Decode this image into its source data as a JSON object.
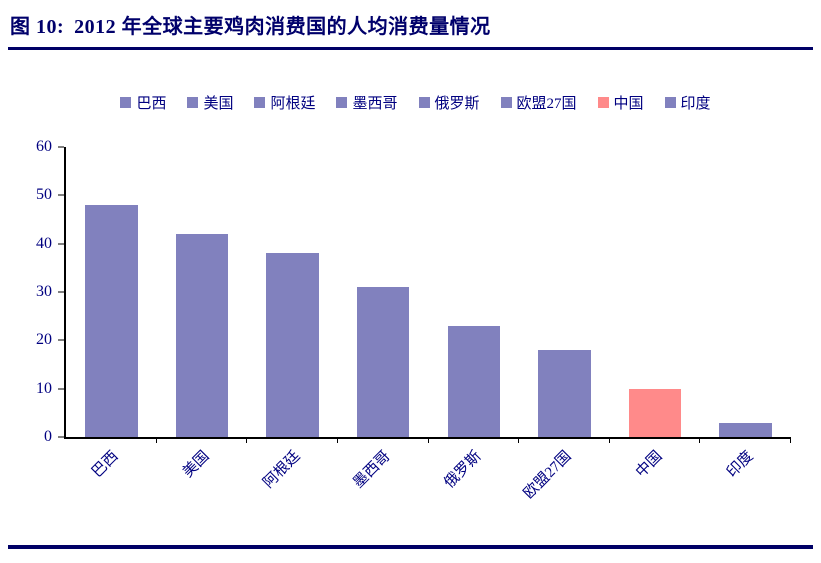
{
  "figure": {
    "label": "图 10:",
    "title": "2012 年全球主要鸡肉消费国的人均消费量情况"
  },
  "colors": {
    "bar_default": "#8181be",
    "bar_highlight": "#ff8a8a",
    "axis_text": "#000080",
    "title_text": "#00006b",
    "rule": "#000066",
    "axis_line": "#000000"
  },
  "chart_data": {
    "type": "bar",
    "title": "2012 年全球主要鸡肉消费国的人均消费量情况",
    "categories": [
      "巴西",
      "美国",
      "阿根廷",
      "墨西哥",
      "俄罗斯",
      "欧盟27国",
      "中国",
      "印度"
    ],
    "values": [
      48,
      42,
      38,
      31,
      23,
      18,
      10,
      3
    ],
    "bar_colors": [
      "#8181be",
      "#8181be",
      "#8181be",
      "#8181be",
      "#8181be",
      "#8181be",
      "#ff8a8a",
      "#8181be"
    ],
    "xlabel": "",
    "ylabel": "",
    "ylim": [
      0,
      60
    ],
    "yticks": [
      0,
      10,
      20,
      30,
      40,
      50,
      60
    ],
    "grid": false,
    "legend_position": "top",
    "legend": [
      {
        "label": "巴西",
        "color": "#8181be"
      },
      {
        "label": "美国",
        "color": "#8181be"
      },
      {
        "label": "阿根廷",
        "color": "#8181be"
      },
      {
        "label": "墨西哥",
        "color": "#8181be"
      },
      {
        "label": "俄罗斯",
        "color": "#8181be"
      },
      {
        "label": "欧盟27国",
        "color": "#8181be"
      },
      {
        "label": "中国",
        "color": "#ff8a8a"
      },
      {
        "label": "印度",
        "color": "#8181be"
      }
    ]
  }
}
